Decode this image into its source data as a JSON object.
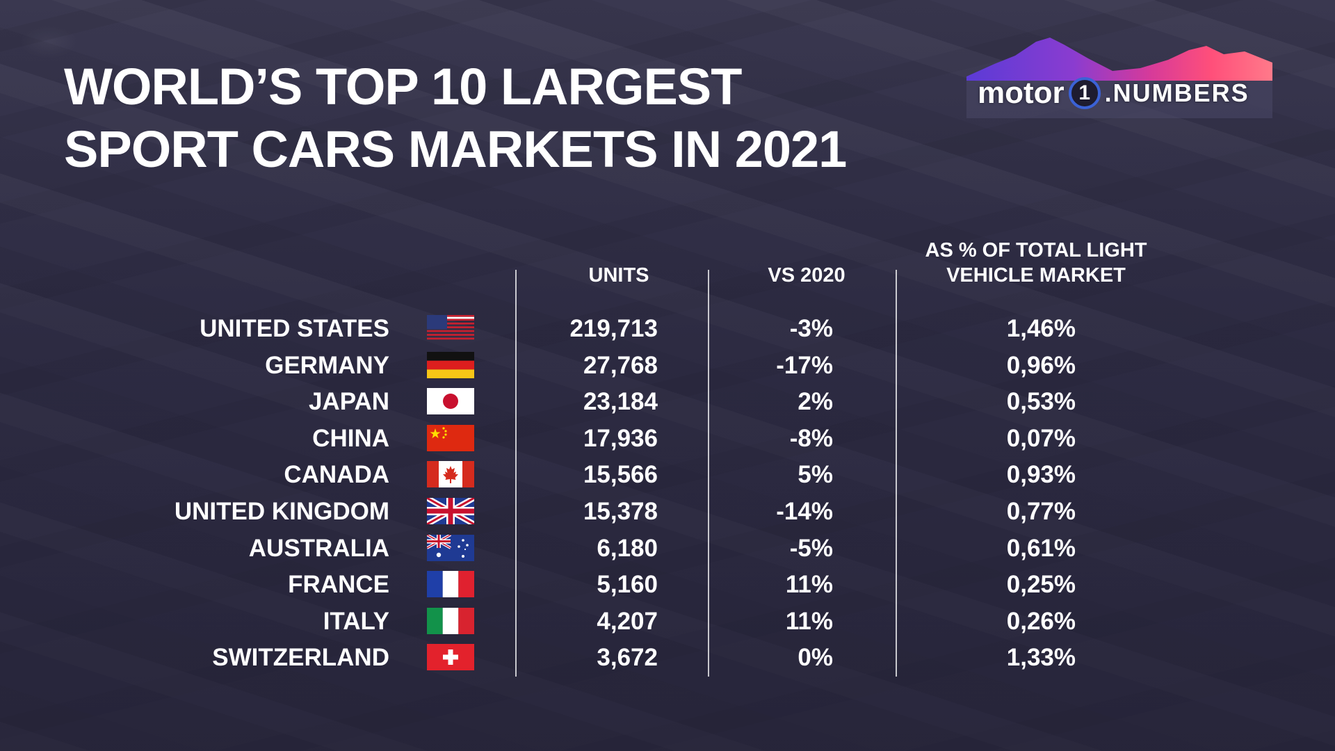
{
  "title": {
    "line1": "WORLD’S TOP 10 LARGEST",
    "line2": "SPORT CARS MARKETS IN 2021"
  },
  "logo": {
    "motor": "motor",
    "one": "1",
    "numbers": ".NUMBERS"
  },
  "colors": {
    "background": "#2d2b43",
    "text": "#ffffff",
    "logo_ring": "#3b62d6"
  },
  "chart_data": {
    "type": "table",
    "title": "WORLD’S TOP 10 LARGEST SPORT CARS MARKETS IN 2021",
    "columns": {
      "units": "UNITS",
      "vs": "VS 2020",
      "share_line1": "AS % OF TOTAL LIGHT",
      "share_line2": "VEHICLE MARKET"
    },
    "rows": [
      {
        "country": "UNITED STATES",
        "flag": "us-flag-icon",
        "units": "219,713",
        "vs": "-3%",
        "share": "1,46%"
      },
      {
        "country": "GERMANY",
        "flag": "germany-flag-icon",
        "units": "27,768",
        "vs": "-17%",
        "share": "0,96%"
      },
      {
        "country": "JAPAN",
        "flag": "japan-flag-icon",
        "units": "23,184",
        "vs": "2%",
        "share": "0,53%"
      },
      {
        "country": "CHINA",
        "flag": "china-flag-icon",
        "units": "17,936",
        "vs": "-8%",
        "share": "0,07%"
      },
      {
        "country": "CANADA",
        "flag": "canada-flag-icon",
        "units": "15,566",
        "vs": "5%",
        "share": "0,93%"
      },
      {
        "country": "UNITED KINGDOM",
        "flag": "uk-flag-icon",
        "units": "15,378",
        "vs": "-14%",
        "share": "0,77%"
      },
      {
        "country": "AUSTRALIA",
        "flag": "australia-flag-icon",
        "units": "6,180",
        "vs": "-5%",
        "share": "0,61%"
      },
      {
        "country": "FRANCE",
        "flag": "france-flag-icon",
        "units": "5,160",
        "vs": "11%",
        "share": "0,25%"
      },
      {
        "country": "ITALY",
        "flag": "italy-flag-icon",
        "units": "4,207",
        "vs": "11%",
        "share": "0,26%"
      },
      {
        "country": "SWITZERLAND",
        "flag": "switzerland-flag-icon",
        "units": "3,672",
        "vs": "0%",
        "share": "1,33%"
      }
    ]
  }
}
